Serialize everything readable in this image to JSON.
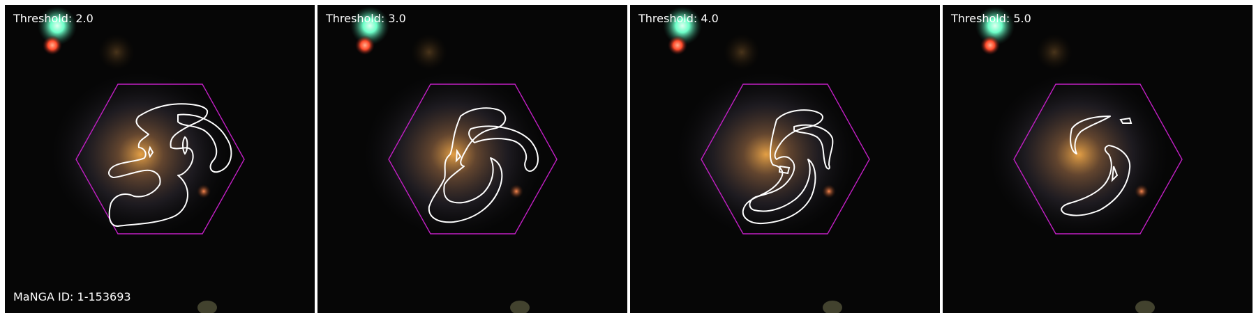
{
  "figure": {
    "manga_id_label": "MaNGA ID: 1-153693",
    "panels": [
      {
        "threshold_label": "Threshold: 2.0"
      },
      {
        "threshold_label": "Threshold: 3.0"
      },
      {
        "threshold_label": "Threshold: 4.0"
      },
      {
        "threshold_label": "Threshold: 5.0"
      }
    ]
  },
  "colors": {
    "background": "#060606",
    "hexagon": "#c21fc4",
    "contour": "#ffffff",
    "bright_star": "#6dffc8",
    "red_star": "#ff5b3a",
    "galaxy_core": "#e8a046"
  }
}
